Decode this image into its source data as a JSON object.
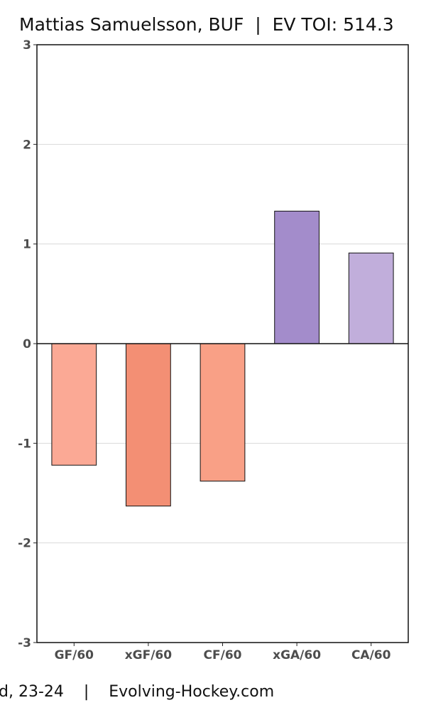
{
  "title": "Mattias Samuelsson, BUF  |  EV TOI: 514.3",
  "footer": "d, 23-24    |    Evolving-Hockey.com",
  "chart_data": {
    "type": "bar",
    "categories": [
      "GF/60",
      "xGF/60",
      "CF/60",
      "xGA/60",
      "CA/60"
    ],
    "values": [
      -1.22,
      -1.63,
      -1.38,
      1.33,
      0.91
    ],
    "colors": [
      "#fba995",
      "#f38f74",
      "#f9a086",
      "#a38ccb",
      "#c1aedb"
    ],
    "ylim": [
      -3,
      3
    ],
    "yticks": [
      3,
      2,
      1,
      0,
      -1,
      -2,
      -3
    ],
    "ytick_labels": [
      "3",
      "2",
      "1",
      "0",
      "-1",
      "-2",
      "-3"
    ],
    "grid": true
  }
}
